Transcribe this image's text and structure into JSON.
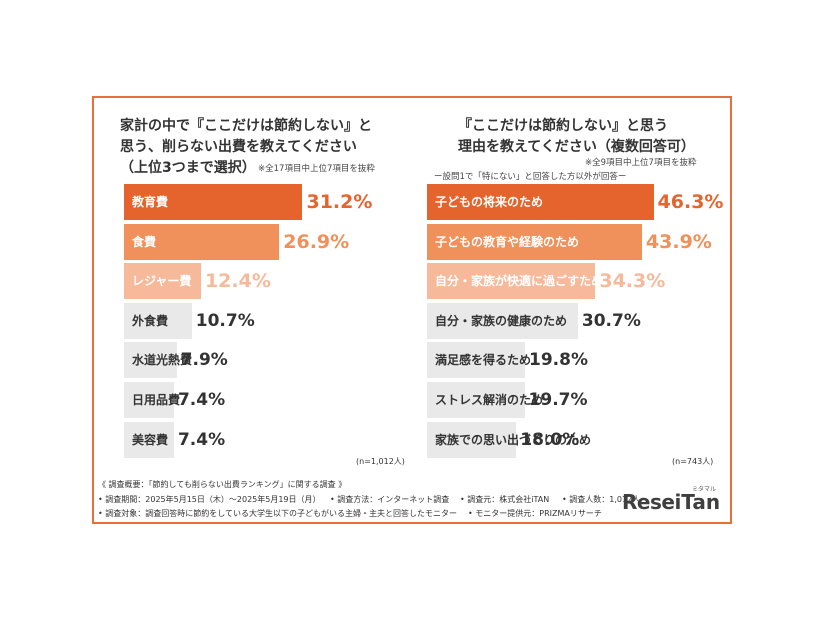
{
  "left_chart": {
    "title_lines": [
      "家計の中で『ここだけは節約しない』と",
      "思う、削らない出費を教えてください",
      "（上位3つまで選択）"
    ],
    "note": "※全17項目中上位7項目を抜粋",
    "n_label": "(n=1,012人)"
  },
  "right_chart": {
    "title_lines": [
      "『ここだけは節約しない』と思う",
      "理由を教えてください（複数回答可）"
    ],
    "note": "※全9項目中上位7項目を抜粋",
    "subnote": "ー設問1で「特にない」と回答した方以外が回答ー",
    "n_label": "(n=743人)"
  },
  "chart_data": [
    {
      "type": "bar",
      "orientation": "horizontal",
      "title": "家計の中で『ここだけは節約しない』と思う、削らない出費を教えてください（上位3つまで選択）",
      "categories": [
        "教育費",
        "食費",
        "レジャー費",
        "外食費",
        "水道光熱費",
        "日用品費",
        "美容費"
      ],
      "values": [
        31.2,
        26.9,
        12.4,
        10.7,
        7.9,
        7.4,
        7.4
      ],
      "value_labels": [
        "31.2%",
        "26.9%",
        "12.4%",
        "10.7%",
        "7.9%",
        "7.4%",
        "7.4%"
      ],
      "colors": [
        "#e5642d",
        "#f0905a",
        "#f6b99a",
        "#e9e9e9",
        "#e9e9e9",
        "#e9e9e9",
        "#e9e9e9"
      ],
      "unit": "%"
    },
    {
      "type": "bar",
      "orientation": "horizontal",
      "title": "『ここだけは節約しない』と思う理由を教えてください（複数回答可）",
      "categories": [
        "子どもの将来のため",
        "子どもの教育や経験のため",
        "自分・家族が快適に過ごすため",
        "自分・家族の健康のため",
        "満足感を得るため",
        "ストレス解消のため",
        "家族での思い出づくりのため"
      ],
      "values": [
        46.3,
        43.9,
        34.3,
        30.7,
        19.8,
        19.7,
        18.0
      ],
      "value_labels": [
        "46.3%",
        "43.9%",
        "34.3%",
        "30.7%",
        "19.8%",
        "19.7%",
        "18.0%"
      ],
      "colors": [
        "#e5642d",
        "#f0905a",
        "#f6b99a",
        "#e9e9e9",
        "#e9e9e9",
        "#e9e9e9",
        "#e9e9e9"
      ],
      "unit": "%"
    }
  ],
  "footer": {
    "line1": "《 調査概要：「節約しても削らない出費ランキング」に関する調査 》",
    "period": "• 調査期間：2025年5月15日（木）～2025年5月19日（月）",
    "method": "• 調査方法：インターネット調査",
    "source": "• 調査元：株式会社iTAN",
    "people": "• 調査人数：1,012人",
    "target": "• 調査対象：調査回答時に節約をしている大学生以下の子どもがいる主婦・主夫と回答したモニター",
    "provider": "• モニター提供元：PRIZMAリサーチ"
  },
  "logo": {
    "text_left": "Rese",
    "text_right": "iTan",
    "small": "ミタマル"
  }
}
